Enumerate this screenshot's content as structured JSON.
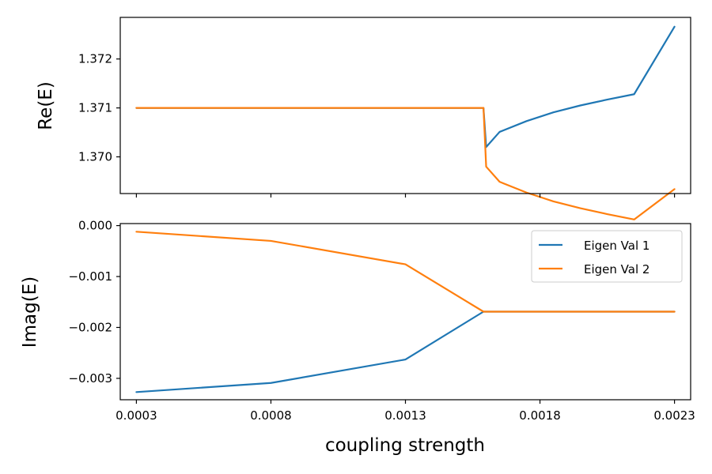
{
  "chart_data": [
    {
      "type": "line",
      "panel": "top",
      "ylabel": "Re(E)",
      "xlim": [
        0.00024,
        0.00236
      ],
      "ylim": [
        1.36925,
        1.37285
      ],
      "xticks": [
        0.0003,
        0.0008,
        0.0013,
        0.0018,
        0.0023
      ],
      "yticks": [
        {
          "value": 1.37,
          "label": "1.370"
        },
        {
          "value": 1.371,
          "label": "1.371"
        },
        {
          "value": 1.372,
          "label": "1.372"
        }
      ],
      "series": [
        {
          "color": "#1f77b4",
          "x": [
            0.0003,
            0.0008,
            0.0013,
            0.00159,
            0.0016,
            0.00165,
            0.00175,
            0.00185,
            0.00195,
            0.00205,
            0.00215,
            0.0023
          ],
          "y": [
            1.371,
            1.371,
            1.371,
            1.371,
            1.3702,
            1.37051,
            1.37073,
            1.37091,
            1.37105,
            1.37117,
            1.37128,
            1.37266
          ]
        },
        {
          "color": "#ff7f0e",
          "x": [
            0.0003,
            0.0008,
            0.0013,
            0.00159,
            0.0016,
            0.00165,
            0.00175,
            0.00185,
            0.00195,
            0.00205,
            0.00215,
            0.0023
          ],
          "y": [
            1.371,
            1.371,
            1.371,
            1.371,
            1.3698,
            1.36949,
            1.36927,
            1.36909,
            1.36895,
            1.36883,
            1.36872,
            1.36934
          ]
        }
      ]
    },
    {
      "type": "line",
      "panel": "bottom",
      "xlabel": "coupling strength",
      "ylabel": "Imag(E)",
      "xlim": [
        0.00024,
        0.00236
      ],
      "ylim": [
        -0.00342,
        4e-05
      ],
      "xticks": [
        {
          "value": 0.0003,
          "label": "0.0003"
        },
        {
          "value": 0.0008,
          "label": "0.0008"
        },
        {
          "value": 0.0013,
          "label": "0.0013"
        },
        {
          "value": 0.0018,
          "label": "0.0018"
        },
        {
          "value": 0.0023,
          "label": "0.0023"
        }
      ],
      "yticks": [
        {
          "value": 0.0,
          "label": "0.000"
        },
        {
          "value": -0.001,
          "label": "−0.001"
        },
        {
          "value": -0.002,
          "label": "−0.002"
        },
        {
          "value": -0.003,
          "label": "−0.003"
        }
      ],
      "legend": {
        "placement": "top-right",
        "entries": [
          {
            "label": "Eigen Val 1",
            "color": "#1f77b4"
          },
          {
            "label": "Eigen Val 2",
            "color": "#ff7f0e"
          }
        ]
      },
      "series": [
        {
          "name": "Eigen Val 1",
          "color": "#1f77b4",
          "x": [
            0.0003,
            0.0008,
            0.0013,
            0.00159,
            0.0018,
            0.0023
          ],
          "y": [
            -0.00327,
            -0.00309,
            -0.00263,
            -0.00169,
            -0.00169,
            -0.00169
          ]
        },
        {
          "name": "Eigen Val 2",
          "color": "#ff7f0e",
          "x": [
            0.0003,
            0.0008,
            0.0013,
            0.00159,
            0.0018,
            0.0023
          ],
          "y": [
            -0.00012,
            -0.0003,
            -0.00076,
            -0.00169,
            -0.00169,
            -0.00169
          ]
        }
      ]
    }
  ]
}
